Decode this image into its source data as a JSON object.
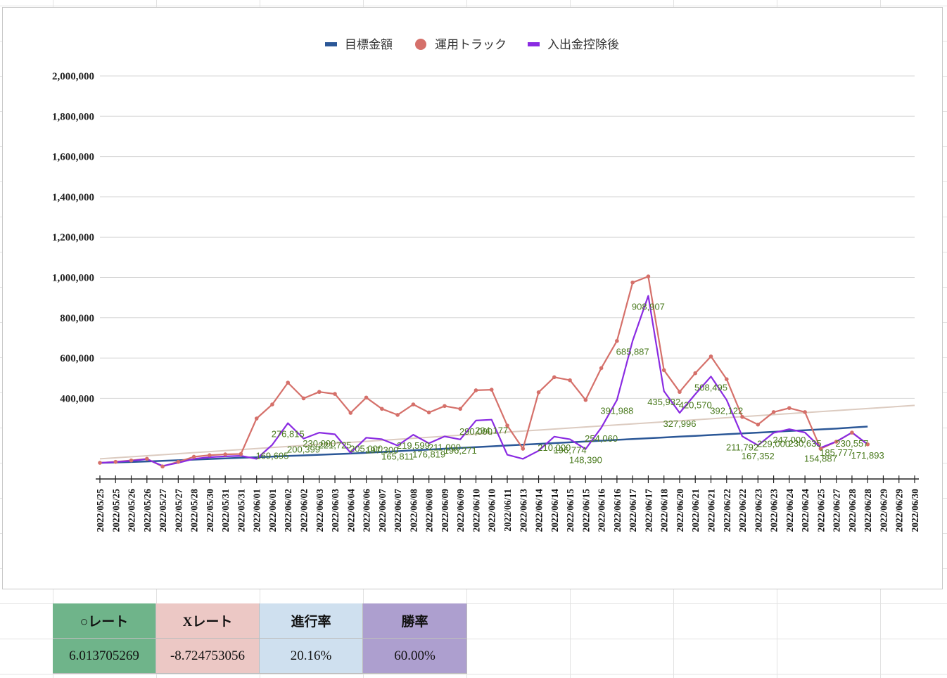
{
  "chart_data": {
    "type": "line",
    "title": "",
    "xlabel": "",
    "ylabel": "",
    "ylim": [
      0,
      2000000
    ],
    "yticks": [
      "2,000,000",
      "1,800,000",
      "1,600,000",
      "1,400,000",
      "1,200,000",
      "1,000,000",
      "800,000",
      "600,000",
      "400,000"
    ],
    "ytick_values": [
      2000000,
      1800000,
      1600000,
      1400000,
      1200000,
      1000000,
      800000,
      600000,
      400000
    ],
    "grid": true,
    "legend_position": "top",
    "categories": [
      "2022/05/25",
      "2022/05/25",
      "2022/05/26",
      "2022/05/26",
      "2022/05/27",
      "2022/05/27",
      "2022/05/28",
      "2022/05/30",
      "2022/05/31",
      "2022/05/31",
      "2022/06/01",
      "2022/06/01",
      "2022/06/02",
      "2022/06/02",
      "2022/06/03",
      "2022/06/03",
      "2022/06/04",
      "2022/06/06",
      "2022/06/07",
      "2022/06/07",
      "2022/06/08",
      "2022/06/08",
      "2022/06/09",
      "2022/06/09",
      "2022/06/10",
      "2022/06/10",
      "2022/06/11",
      "2022/06/13",
      "2022/06/14",
      "2022/06/14",
      "2022/06/15",
      "2022/06/15",
      "2022/06/16",
      "2022/06/16",
      "2022/06/17",
      "2022/06/17",
      "2022/06/18",
      "2022/06/20",
      "2022/06/21",
      "2022/06/21",
      "2022/06/22",
      "2022/06/22",
      "2022/06/23",
      "2022/06/23",
      "2022/06/24",
      "2022/06/24",
      "2022/06/25",
      "2022/06/27",
      "2022/06/28",
      "2022/06/28",
      "2022/06/29",
      "2022/06/29",
      "2022/06/30"
    ],
    "series": [
      {
        "name": "目標金額",
        "color": "#2b5797",
        "values": [
          80000,
          82000,
          84000,
          87000,
          90000,
          93000,
          96000,
          99000,
          102000,
          105000,
          108000,
          111000,
          114000,
          117000,
          120000,
          123000,
          126000,
          130000,
          134000,
          138000,
          142000,
          146000,
          150000,
          154000,
          158000,
          162000,
          166000,
          170000,
          174000,
          178000,
          182000,
          186000,
          190000,
          194000,
          198000,
          202000,
          206000,
          210000,
          214000,
          218000,
          222000,
          226000,
          230000,
          234000,
          238000,
          242000,
          246000,
          250000,
          255000,
          260000,
          null,
          null,
          null
        ]
      },
      {
        "name": "運用トラック",
        "color": "#d5706a",
        "values": [
          80000,
          85000,
          92000,
          100000,
          62000,
          85000,
          110000,
          118000,
          122000,
          124000,
          300000,
          370000,
          478000,
          400000,
          432000,
          422000,
          328000,
          404000,
          348000,
          318000,
          370000,
          330000,
          362000,
          348000,
          440000,
          443000,
          265000,
          150000,
          430000,
          505000,
          490000,
          392000,
          550000,
          685000,
          975000,
          1005000,
          540000,
          432000,
          525000,
          608000,
          495000,
          308000,
          270000,
          332000,
          352000,
          332000,
          150000,
          185000,
          230000,
          171893,
          null,
          null,
          null
        ]
      },
      {
        "name": "入出金控除後",
        "color": "#8a2be2",
        "values": [
          80000,
          84000,
          90000,
          98000,
          65000,
          80000,
          100000,
          108000,
          112000,
          115000,
          100000,
          169695,
          276815,
          200399,
          230000,
          221725,
          130000,
          205000,
          197300,
          165811,
          219599,
          176819,
          211000,
          196271,
          290000,
          294177,
          120000,
          100000,
          140000,
          210000,
          196774,
          148390,
          254060,
          391988,
          685887,
          908907,
          435932,
          327996,
          420570,
          508495,
          392122,
          211792,
          167352,
          229000,
          247000,
          230635,
          154887,
          185777,
          230557,
          171893,
          null,
          null,
          null
        ]
      }
    ],
    "data_labels": [
      {
        "series": 2,
        "index": 11,
        "text": "169,695"
      },
      {
        "series": 2,
        "index": 12,
        "text": "276,815"
      },
      {
        "series": 2,
        "index": 13,
        "text": "200,399"
      },
      {
        "series": 2,
        "index": 14,
        "text": "230,000"
      },
      {
        "series": 2,
        "index": 15,
        "text": "221,725"
      },
      {
        "series": 2,
        "index": 17,
        "text": "205,000"
      },
      {
        "series": 2,
        "index": 18,
        "text": "197,300"
      },
      {
        "series": 2,
        "index": 19,
        "text": "165,811"
      },
      {
        "series": 2,
        "index": 20,
        "text": "219,599"
      },
      {
        "series": 2,
        "index": 21,
        "text": "176,819"
      },
      {
        "series": 2,
        "index": 22,
        "text": "211,000"
      },
      {
        "series": 2,
        "index": 23,
        "text": "196,271"
      },
      {
        "series": 2,
        "index": 24,
        "text": "290,000"
      },
      {
        "series": 2,
        "index": 25,
        "text": "294,177"
      },
      {
        "series": 2,
        "index": 29,
        "text": "210,000"
      },
      {
        "series": 2,
        "index": 30,
        "text": "196,774"
      },
      {
        "series": 2,
        "index": 31,
        "text": "148,390"
      },
      {
        "series": 2,
        "index": 32,
        "text": "254,060"
      },
      {
        "series": 2,
        "index": 33,
        "text": "391,988"
      },
      {
        "series": 2,
        "index": 34,
        "text": "685,887"
      },
      {
        "series": 2,
        "index": 35,
        "text": "908,907"
      },
      {
        "series": 2,
        "index": 36,
        "text": "435,932"
      },
      {
        "series": 2,
        "index": 37,
        "text": "327,996"
      },
      {
        "series": 2,
        "index": 38,
        "text": "420,570"
      },
      {
        "series": 2,
        "index": 39,
        "text": "508,495"
      },
      {
        "series": 2,
        "index": 40,
        "text": "392,122"
      },
      {
        "series": 2,
        "index": 41,
        "text": "211,792"
      },
      {
        "series": 2,
        "index": 42,
        "text": "167,352"
      },
      {
        "series": 2,
        "index": 43,
        "text": "229,000"
      },
      {
        "series": 2,
        "index": 44,
        "text": "247,000"
      },
      {
        "series": 2,
        "index": 45,
        "text": "230,635"
      },
      {
        "series": 2,
        "index": 46,
        "text": "154,887"
      },
      {
        "series": 2,
        "index": 47,
        "text": "185,777"
      },
      {
        "series": 2,
        "index": 48,
        "text": "230,557"
      },
      {
        "series": 2,
        "index": 49,
        "text": "171,893"
      }
    ],
    "trendline": {
      "color": "#dccbc0",
      "start": 100000,
      "end": 365000
    }
  },
  "stats": {
    "headers": [
      "○レート",
      "Xレート",
      "進行率",
      "勝率"
    ],
    "values": [
      "6.013705269",
      "-8.724753056",
      "20.16%",
      "60.00%"
    ],
    "colors": [
      "#6fb48a",
      "#ecc8c5",
      "#cfe0ef",
      "#ad9fcf"
    ]
  }
}
